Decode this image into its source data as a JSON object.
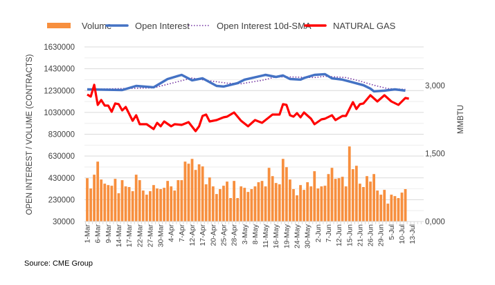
{
  "chart_data": {
    "type": "bar+line",
    "title": "",
    "legend": {
      "placement": "top",
      "entries": [
        "Volume",
        "Open Interest",
        "Open Interest 10d-SMA",
        "NATURAL GAS"
      ]
    },
    "ylabel": "OPEN INTEREST / VOLUME (CONTRACTS)",
    "y2label": "MMBTU",
    "ylim": [
      30000,
      1630000
    ],
    "yticks": [
      "30000",
      "230000",
      "430000",
      "630000",
      "830000",
      "1030000",
      "1230000",
      "1430000",
      "1630000"
    ],
    "y2lim": [
      0,
      3000
    ],
    "y2ticks": [
      "0,000",
      "1,500",
      "3,000"
    ],
    "xtick_labels": [
      "1-Mar",
      "6-Mar",
      "9-Mar",
      "14-Mar",
      "17-Mar",
      "22-Mar",
      "27-Mar",
      "30-Mar",
      "4-Apr",
      "7-Apr",
      "12-Apr",
      "17-Apr",
      "20-Apr",
      "25-Apr",
      "28-Apr",
      "3-May",
      "8-May",
      "11-May",
      "16-May",
      "19-May",
      "24-May",
      "30-May",
      "2-Jun",
      "7-Jun",
      "12-Jun",
      "15-Jun",
      "21-Jun",
      "26-Jun",
      "29-Jun",
      "5-Jul",
      "10-Jul",
      "13-Jul"
    ],
    "xtick_every_n_days": 3,
    "grid": true,
    "colors": {
      "volume": "#F78F3E",
      "open_interest": "#4472C4",
      "sma": "#7030A0",
      "natural_gas": "#FF0000"
    },
    "volume": [
      427000,
      333000,
      459000,
      579000,
      415000,
      377000,
      364000,
      358000,
      421000,
      289000,
      409000,
      352000,
      346000,
      308000,
      459000,
      409000,
      314000,
      276000,
      308000,
      364000,
      333000,
      327000,
      339000,
      402000,
      352000,
      314000,
      409000,
      409000,
      579000,
      560000,
      604000,
      503000,
      554000,
      535000,
      371000,
      434000,
      352000,
      282000,
      327000,
      358000,
      396000,
      245000,
      402000,
      245000,
      352000,
      339000,
      301000,
      327000,
      352000,
      390000,
      402000,
      352000,
      522000,
      446000,
      383000,
      371000,
      604000,
      528000,
      415000,
      327000,
      270000,
      364000,
      320000,
      390000,
      352000,
      491000,
      333000,
      352000,
      358000,
      465000,
      522000,
      421000,
      427000,
      440000,
      352000,
      718000,
      510000,
      541000,
      377000,
      346000,
      446000,
      396000,
      465000,
      314000,
      276000,
      320000,
      194000,
      276000,
      263000,
      245000,
      295000,
      327000
    ],
    "open_interest_points": [
      [
        0,
        1241000
      ],
      [
        10,
        1235000
      ],
      [
        14,
        1273000
      ],
      [
        19,
        1260000
      ],
      [
        23,
        1336000
      ],
      [
        27,
        1374000
      ],
      [
        30,
        1324000
      ],
      [
        33,
        1342000
      ],
      [
        37,
        1273000
      ],
      [
        39,
        1267000
      ],
      [
        43,
        1298000
      ],
      [
        45,
        1330000
      ],
      [
        51,
        1374000
      ],
      [
        54,
        1355000
      ],
      [
        56,
        1368000
      ],
      [
        58,
        1336000
      ],
      [
        61,
        1330000
      ],
      [
        62,
        1345000
      ],
      [
        65,
        1374000
      ],
      [
        68,
        1380000
      ],
      [
        70,
        1342000
      ],
      [
        73,
        1330000
      ],
      [
        79,
        1279000
      ],
      [
        81,
        1248000
      ],
      [
        82,
        1223000
      ],
      [
        85,
        1229000
      ],
      [
        88,
        1241000
      ],
      [
        91,
        1229000
      ]
    ],
    "sma_points": [
      [
        0,
        1241000
      ],
      [
        19,
        1255000
      ],
      [
        30,
        1345000
      ],
      [
        34,
        1324000
      ],
      [
        40,
        1298000
      ],
      [
        44,
        1292000
      ],
      [
        50,
        1324000
      ],
      [
        54,
        1355000
      ],
      [
        58,
        1355000
      ],
      [
        65,
        1349000
      ],
      [
        68,
        1361000
      ],
      [
        74,
        1349000
      ],
      [
        78,
        1317000
      ],
      [
        82,
        1279000
      ],
      [
        86,
        1248000
      ],
      [
        91,
        1241000
      ]
    ],
    "natural_gas_points": [
      [
        0,
        2802
      ],
      [
        1,
        2757
      ],
      [
        2,
        3016
      ],
      [
        3,
        2574
      ],
      [
        4,
        2681
      ],
      [
        5,
        2559
      ],
      [
        6,
        2559
      ],
      [
        7,
        2422
      ],
      [
        8,
        2605
      ],
      [
        9,
        2590
      ],
      [
        10,
        2452
      ],
      [
        11,
        2528
      ],
      [
        13,
        2224
      ],
      [
        14,
        2345
      ],
      [
        15,
        2147
      ],
      [
        17,
        2147
      ],
      [
        19,
        2041
      ],
      [
        20,
        2178
      ],
      [
        21,
        2102
      ],
      [
        22,
        2208
      ],
      [
        24,
        2102
      ],
      [
        25,
        2147
      ],
      [
        27,
        2132
      ],
      [
        29,
        2193
      ],
      [
        31,
        1995
      ],
      [
        32,
        2102
      ],
      [
        33,
        2330
      ],
      [
        34,
        2360
      ],
      [
        35,
        2208
      ],
      [
        37,
        2239
      ],
      [
        39,
        2300
      ],
      [
        40,
        2315
      ],
      [
        42,
        2406
      ],
      [
        44,
        2224
      ],
      [
        46,
        2102
      ],
      [
        48,
        2239
      ],
      [
        50,
        2178
      ],
      [
        53,
        2360
      ],
      [
        55,
        2360
      ],
      [
        56,
        2589
      ],
      [
        57,
        2574
      ],
      [
        58,
        2345
      ],
      [
        59,
        2315
      ],
      [
        60,
        2391
      ],
      [
        61,
        2300
      ],
      [
        62,
        2406
      ],
      [
        64,
        2269
      ],
      [
        65,
        2147
      ],
      [
        67,
        2254
      ],
      [
        68,
        2269
      ],
      [
        70,
        2345
      ],
      [
        71,
        2239
      ],
      [
        73,
        2330
      ],
      [
        74,
        2330
      ],
      [
        76,
        2635
      ],
      [
        77,
        2483
      ],
      [
        78,
        2589
      ],
      [
        79,
        2605
      ],
      [
        81,
        2787
      ],
      [
        83,
        2650
      ],
      [
        85,
        2787
      ],
      [
        87,
        2650
      ],
      [
        89,
        2574
      ],
      [
        91,
        2726
      ],
      [
        92,
        2711
      ]
    ]
  },
  "source": "Source: CME Group"
}
